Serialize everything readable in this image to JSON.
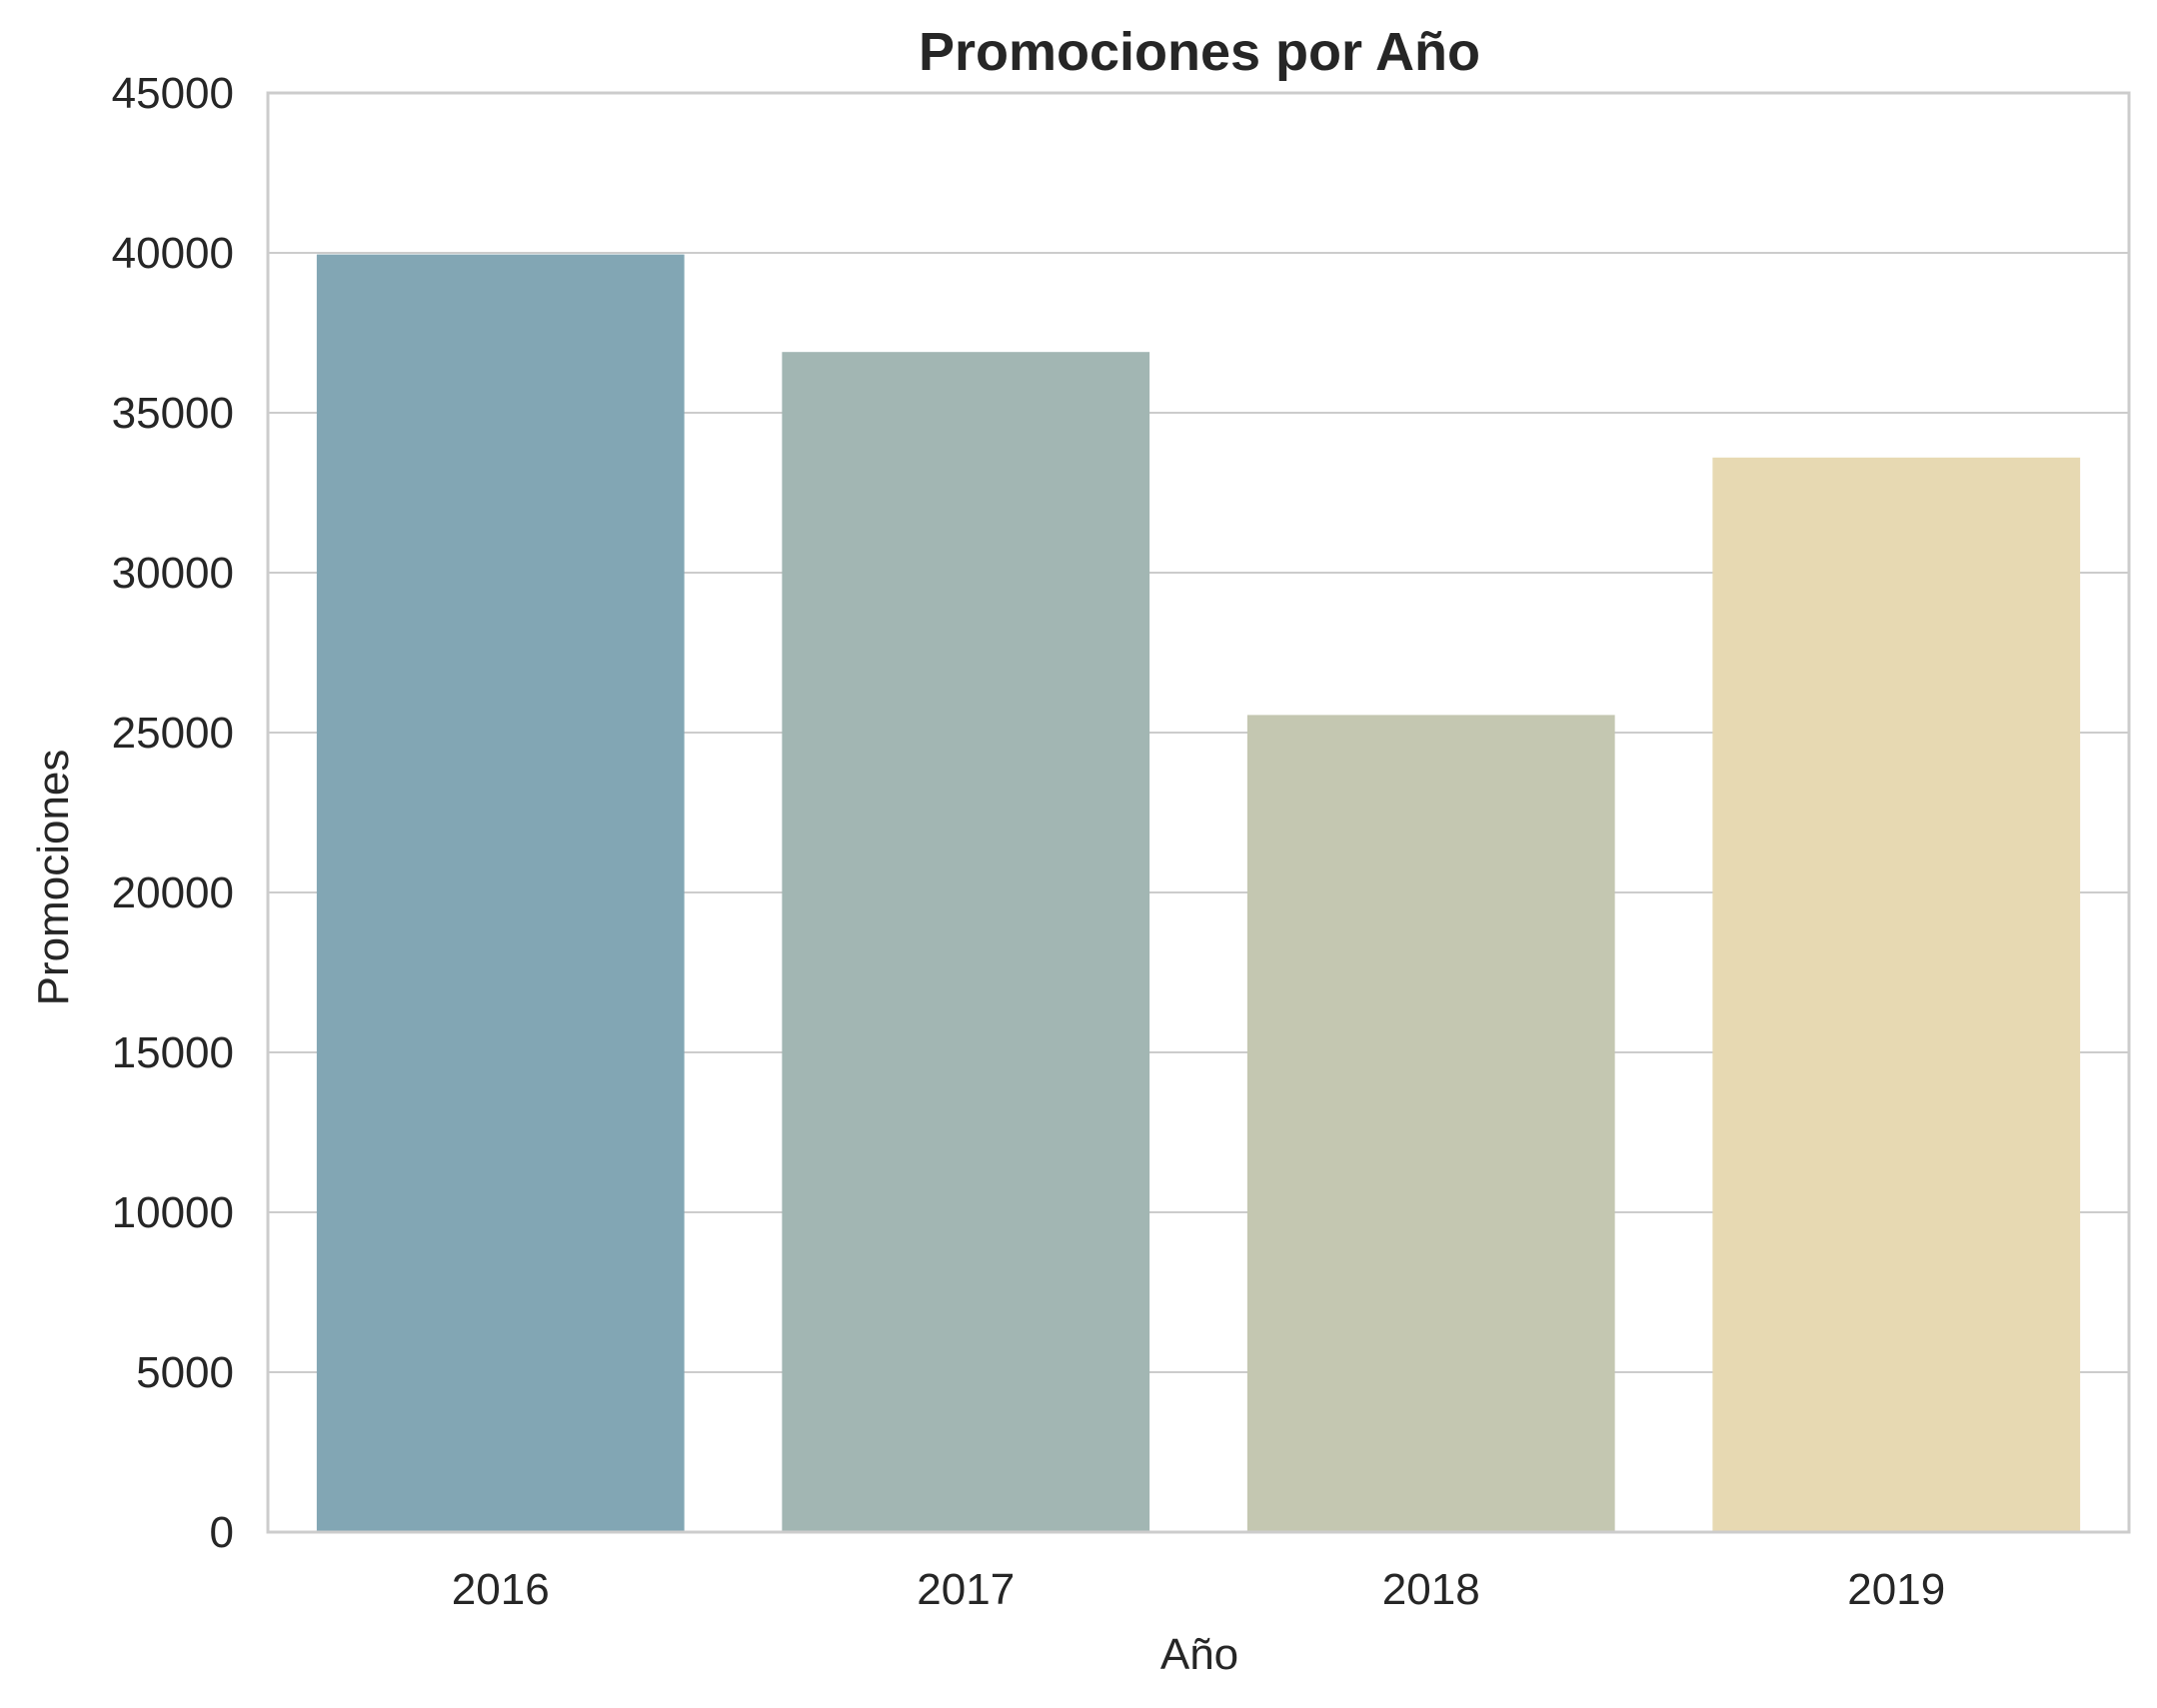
{
  "chart_data": {
    "type": "bar",
    "title": "Promociones por Año",
    "xlabel": "Año",
    "ylabel": "Promociones",
    "categories": [
      "2016",
      "2017",
      "2018",
      "2019"
    ],
    "values": [
      39950,
      36900,
      25550,
      33600
    ],
    "bar_colors": [
      "#82a6b4",
      "#a2b6b3",
      "#c4c7b1",
      "#e7d9b2"
    ],
    "ylim": [
      0,
      45000
    ],
    "yticks": [
      0,
      5000,
      10000,
      15000,
      20000,
      25000,
      30000,
      35000,
      40000,
      45000
    ],
    "grid": "horizontal",
    "legend": "none"
  }
}
